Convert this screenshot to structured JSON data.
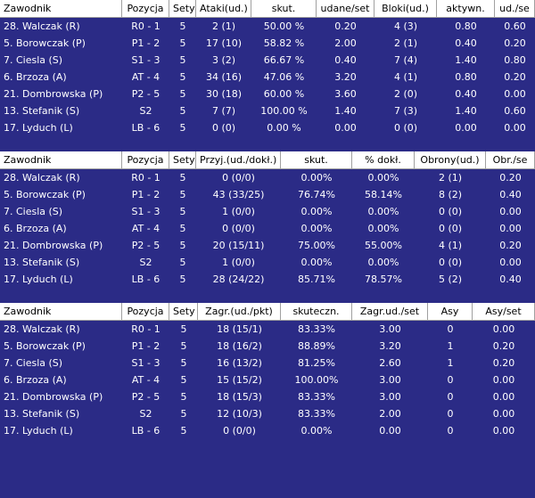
{
  "tables": [
    {
      "header": [
        "Zawodnik",
        "Pozycja",
        "Sety",
        "Ataki(ud.)",
        "skut.",
        "udane/set",
        "Bloki(ud.)",
        "aktywn.",
        "ud./se"
      ],
      "rows": [
        [
          "28. Walczak (R)",
          "R0 - 1",
          "5",
          "2 (1)",
          "50.00 %",
          "0.20",
          "4 (3)",
          "0.80",
          "0.60"
        ],
        [
          "5. Borowczak (P)",
          "P1 - 2",
          "5",
          "17 (10)",
          "58.82 %",
          "2.00",
          "2 (1)",
          "0.40",
          "0.20"
        ],
        [
          "7. Ciesla (S)",
          "S1 - 3",
          "5",
          "3 (2)",
          "66.67 %",
          "0.40",
          "7 (4)",
          "1.40",
          "0.80"
        ],
        [
          "6. Brzoza (A)",
          "AT - 4",
          "5",
          "34 (16)",
          "47.06 %",
          "3.20",
          "4 (1)",
          "0.80",
          "0.20"
        ],
        [
          "21. Dombrowska (P)",
          "P2 - 5",
          "5",
          "30 (18)",
          "60.00 %",
          "3.60",
          "2 (0)",
          "0.40",
          "0.00"
        ],
        [
          "13. Stefanik (S)",
          "S2",
          "5",
          "7 (7)",
          "100.00 %",
          "1.40",
          "7 (3)",
          "1.40",
          "0.60"
        ],
        [
          "17. Lyduch (L)",
          "LB - 6",
          "5",
          "0 (0)",
          "0.00 %",
          "0.00",
          "0 (0)",
          "0.00",
          "0.00"
        ]
      ]
    },
    {
      "header": [
        "Zawodnik",
        "Pozycja",
        "Sety",
        "Przyj.(ud./dokł.)",
        "skut.",
        "% dokł.",
        "Obrony(ud.)",
        "Obr./se"
      ],
      "rows": [
        [
          "28. Walczak (R)",
          "R0 - 1",
          "5",
          "0 (0/0)",
          "0.00%",
          "0.00%",
          "2 (1)",
          "0.20"
        ],
        [
          "5. Borowczak (P)",
          "P1 - 2",
          "5",
          "43 (33/25)",
          "76.74%",
          "58.14%",
          "8 (2)",
          "0.40"
        ],
        [
          "7. Ciesla (S)",
          "S1 - 3",
          "5",
          "1 (0/0)",
          "0.00%",
          "0.00%",
          "0 (0)",
          "0.00"
        ],
        [
          "6. Brzoza (A)",
          "AT - 4",
          "5",
          "0 (0/0)",
          "0.00%",
          "0.00%",
          "0 (0)",
          "0.00"
        ],
        [
          "21. Dombrowska (P)",
          "P2 - 5",
          "5",
          "20 (15/11)",
          "75.00%",
          "55.00%",
          "4 (1)",
          "0.20"
        ],
        [
          "13. Stefanik (S)",
          "S2",
          "5",
          "1 (0/0)",
          "0.00%",
          "0.00%",
          "0 (0)",
          "0.00"
        ],
        [
          "17. Lyduch (L)",
          "LB - 6",
          "5",
          "28 (24/22)",
          "85.71%",
          "78.57%",
          "5 (2)",
          "0.40"
        ]
      ]
    },
    {
      "header": [
        "Zawodnik",
        "Pozycja",
        "Sety",
        "Zagr.(ud./pkt)",
        "skuteczn.",
        "Zagr.ud./set",
        "Asy",
        "Asy/set"
      ],
      "rows": [
        [
          "28. Walczak (R)",
          "R0 - 1",
          "5",
          "18 (15/1)",
          "83.33%",
          "3.00",
          "0",
          "0.00"
        ],
        [
          "5. Borowczak (P)",
          "P1 - 2",
          "5",
          "18 (16/2)",
          "88.89%",
          "3.20",
          "1",
          "0.20"
        ],
        [
          "7. Ciesla (S)",
          "S1 - 3",
          "5",
          "16 (13/2)",
          "81.25%",
          "2.60",
          "1",
          "0.20"
        ],
        [
          "6. Brzoza (A)",
          "AT - 4",
          "5",
          "15 (15/2)",
          "100.00%",
          "3.00",
          "0",
          "0.00"
        ],
        [
          "21. Dombrowska (P)",
          "P2 - 5",
          "5",
          "18 (15/3)",
          "83.33%",
          "3.00",
          "0",
          "0.00"
        ],
        [
          "13. Stefanik (S)",
          "S2",
          "5",
          "12 (10/3)",
          "83.33%",
          "2.00",
          "0",
          "0.00"
        ],
        [
          "17. Lyduch (L)",
          "LB - 6",
          "5",
          "0 (0/0)",
          "0.00%",
          "0.00",
          "0",
          "0.00"
        ]
      ]
    }
  ]
}
